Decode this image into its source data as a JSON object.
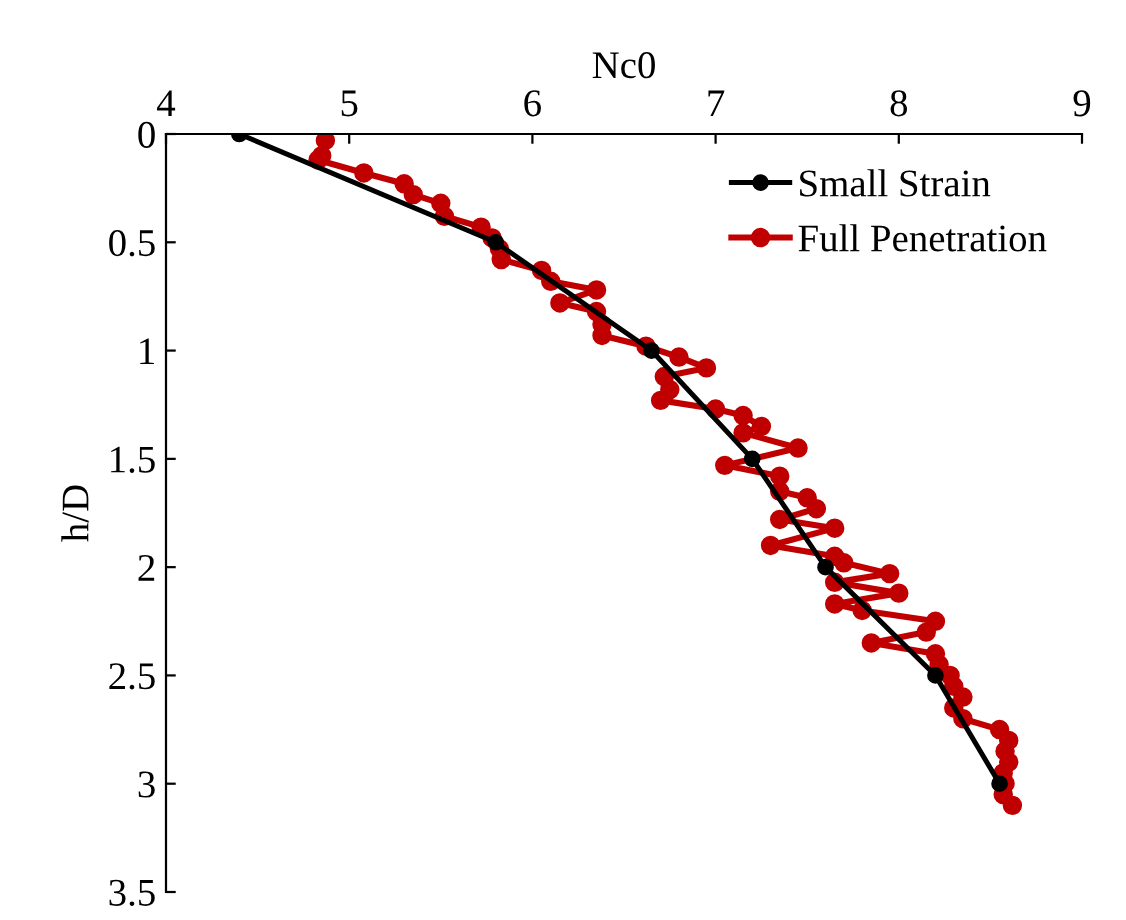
{
  "chart_data": {
    "type": "line",
    "xlabel": "Nc0",
    "ylabel": "h/D",
    "xlim": [
      4,
      9
    ],
    "xticks": [
      4,
      5,
      6,
      7,
      8,
      9
    ],
    "ylim": [
      3.5,
      0
    ],
    "yticks": [
      0,
      0.5,
      1,
      1.5,
      2,
      2.5,
      3,
      3.5
    ],
    "legend": "top right",
    "marker": "circle",
    "grid": false,
    "series": [
      {
        "name": "Small Strain",
        "color": "#000000",
        "x": [
          4.4,
          5.8,
          6.65,
          7.2,
          7.6,
          8.2,
          8.55
        ],
        "values": [
          0,
          0.5,
          1,
          1.5,
          2,
          2.5,
          3
        ]
      },
      {
        "name": "Full Penetration",
        "color": "#c00000",
        "x": [
          4.87,
          4.85,
          4.83,
          5.08,
          5.3,
          5.35,
          5.5,
          5.52,
          5.72,
          5.78,
          5.82,
          5.83,
          6.05,
          6.1,
          6.35,
          6.15,
          6.35,
          6.38,
          6.38,
          6.62,
          6.8,
          6.95,
          6.72,
          6.75,
          6.7,
          7.0,
          7.15,
          7.25,
          7.15,
          7.45,
          7.05,
          7.35,
          7.35,
          7.5,
          7.55,
          7.35,
          7.65,
          7.3,
          7.65,
          7.7,
          7.95,
          7.65,
          8.0,
          7.65,
          7.8,
          8.2,
          8.15,
          7.85,
          8.2,
          8.22,
          8.28,
          8.3,
          8.35,
          8.3,
          8.35,
          8.55,
          8.6,
          8.58,
          8.6,
          8.57,
          8.58,
          8.57,
          8.62
        ],
        "values": [
          0.03,
          0.1,
          0.12,
          0.18,
          0.23,
          0.28,
          0.32,
          0.38,
          0.43,
          0.48,
          0.53,
          0.58,
          0.63,
          0.68,
          0.72,
          0.78,
          0.82,
          0.88,
          0.93,
          0.98,
          1.03,
          1.08,
          1.12,
          1.18,
          1.23,
          1.27,
          1.3,
          1.35,
          1.38,
          1.45,
          1.53,
          1.58,
          1.65,
          1.68,
          1.73,
          1.78,
          1.82,
          1.9,
          1.95,
          1.98,
          2.03,
          2.07,
          2.12,
          2.17,
          2.2,
          2.25,
          2.3,
          2.35,
          2.4,
          2.45,
          2.5,
          2.55,
          2.6,
          2.65,
          2.7,
          2.75,
          2.8,
          2.85,
          2.9,
          2.95,
          3.0,
          3.05,
          3.1
        ]
      }
    ]
  }
}
